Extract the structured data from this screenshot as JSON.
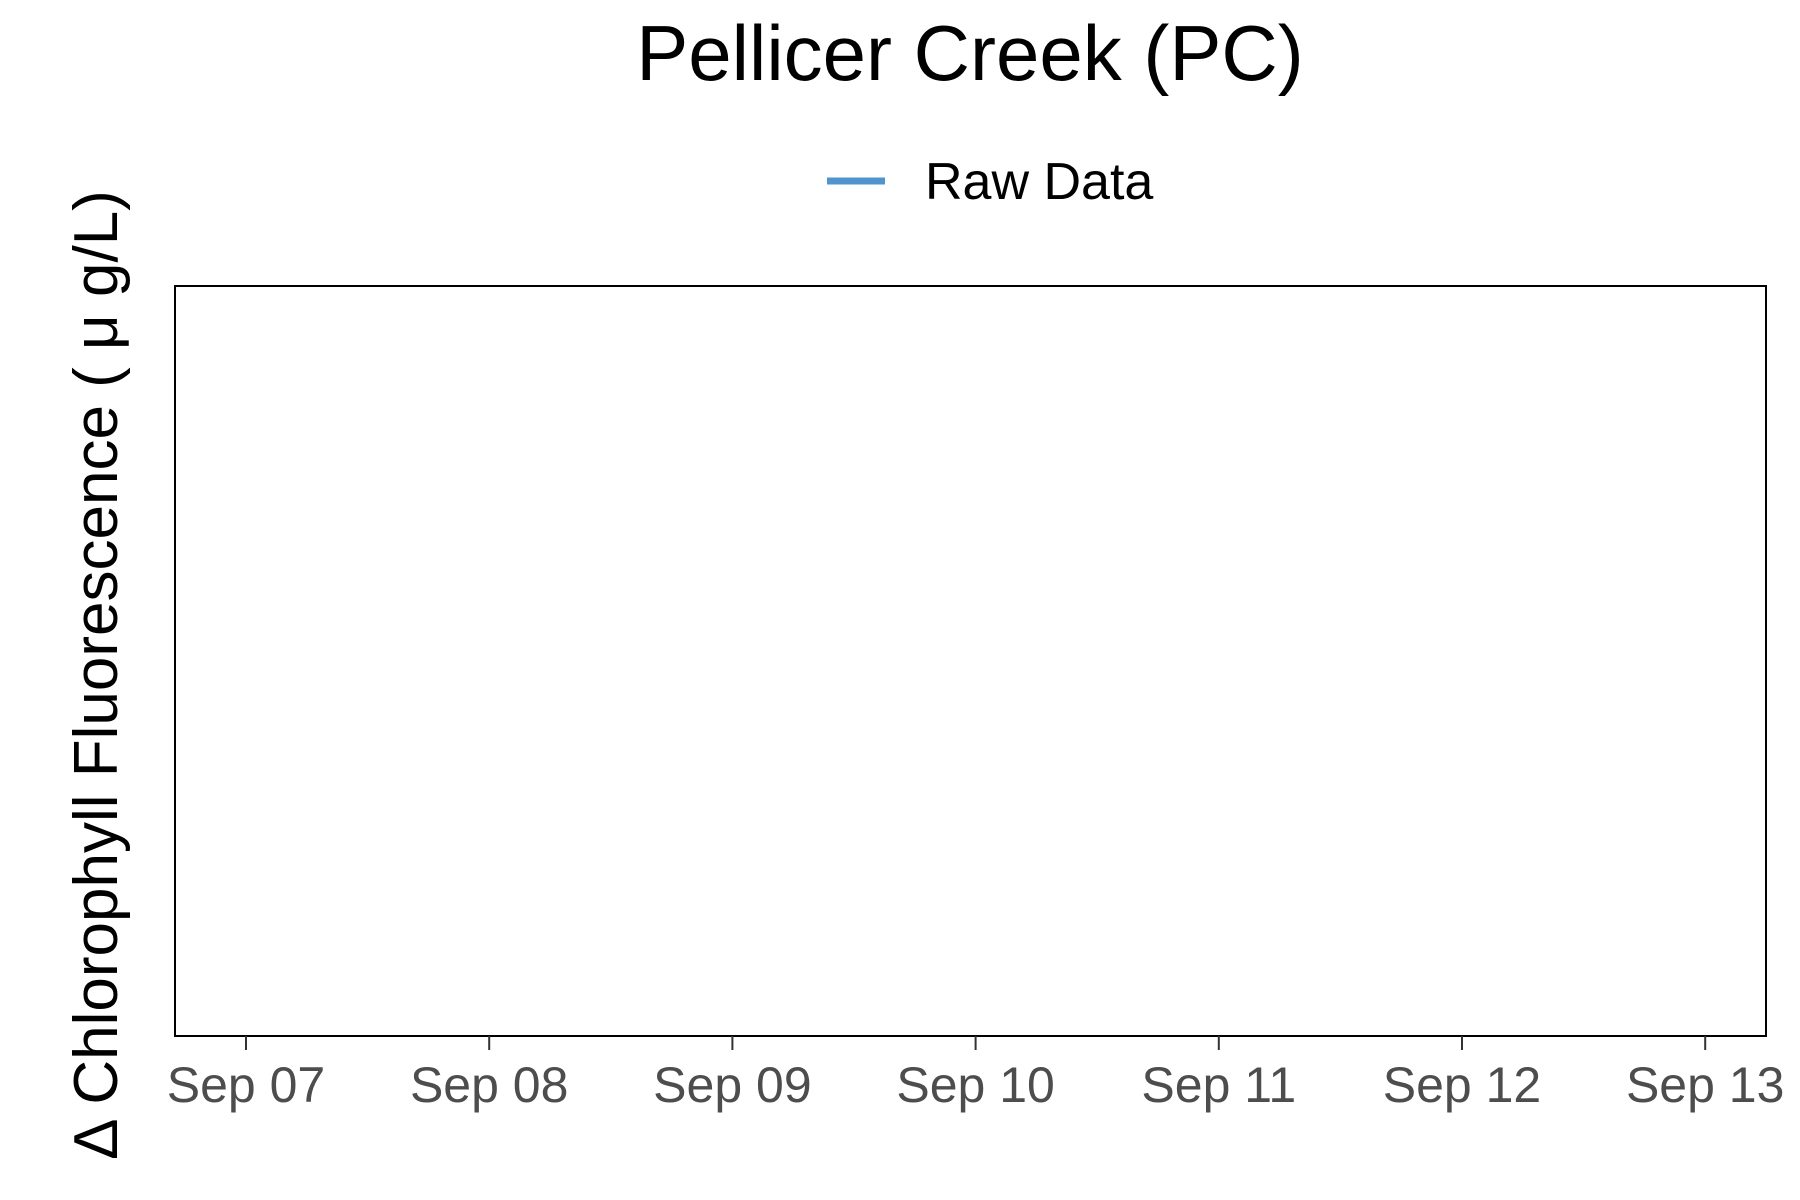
{
  "chart_data": {
    "type": "line",
    "title": "Pellicer Creek (PC)",
    "xlabel": "",
    "ylabel": "Δ Chlorophyll Fluorescence ( μ g/L)",
    "x_ticks": [
      "Sep 07",
      "Sep 08",
      "Sep 09",
      "Sep 10",
      "Sep 11",
      "Sep 12",
      "Sep 13"
    ],
    "series": [
      {
        "name": "Raw Data",
        "color": "#4f94cd",
        "values": []
      }
    ],
    "legend_position": "top",
    "grid": false
  }
}
